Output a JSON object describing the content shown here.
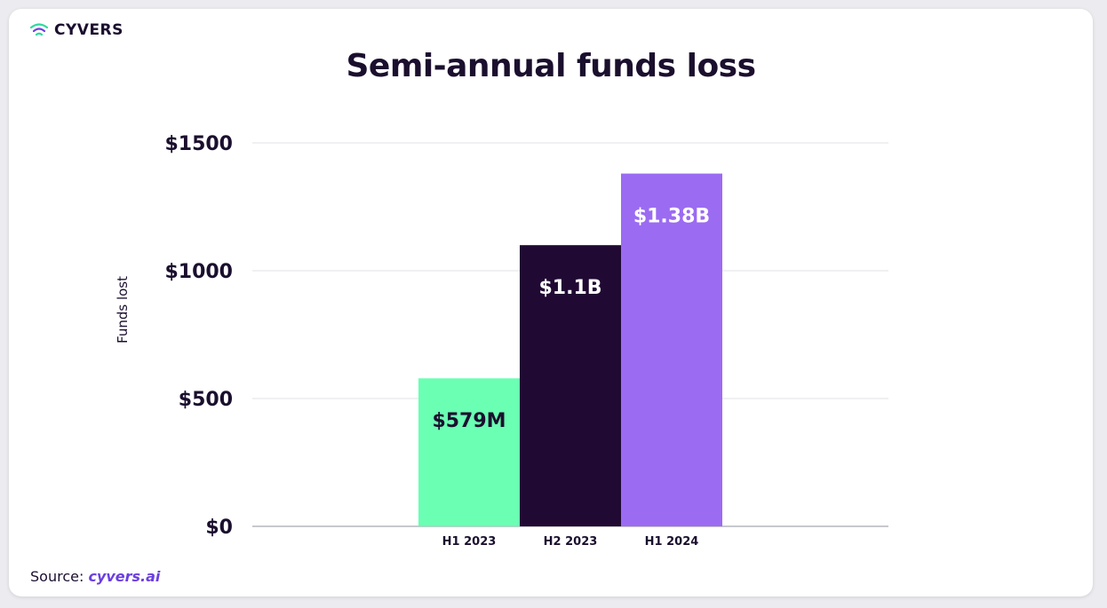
{
  "brand": {
    "logo_icon": "wifi-signal-icon",
    "name": "CYVERS",
    "colors": {
      "text": "#1b0f2e",
      "link": "#6b3fe0"
    }
  },
  "chart_data": {
    "type": "bar",
    "title": "Semi-annual funds loss",
    "xlabel": "",
    "ylabel": "Funds lost",
    "categories": [
      "H1 2023",
      "H2 2023",
      "H1 2024"
    ],
    "values": [
      579,
      1100,
      1380
    ],
    "data_labels": [
      "$579M",
      "$1.1B",
      "$1.38B"
    ],
    "bar_colors": [
      "#6affb3",
      "#200a33",
      "#9b6bf2"
    ],
    "label_colors": [
      "#1b0f2e",
      "#ffffff",
      "#ffffff"
    ],
    "ylim": [
      0,
      1500
    ],
    "yticks": [
      0,
      500,
      1000,
      1500
    ],
    "ytick_labels": [
      "$0",
      "$500",
      "$1000",
      "$1500"
    ],
    "grid": true,
    "legend": "none"
  },
  "source": {
    "label": "Source:",
    "link_text": "cyvers.ai"
  }
}
